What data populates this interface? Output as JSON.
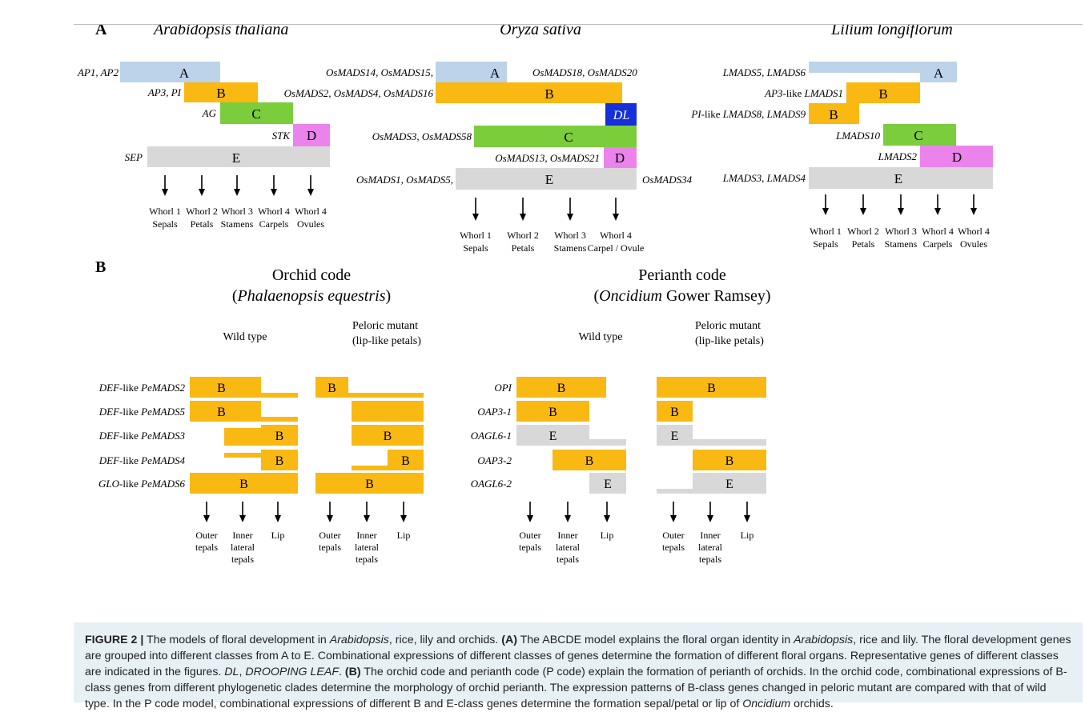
{
  "colors": {
    "A": "#bcd3e9",
    "B": "#f9b812",
    "C": "#7ccd3c",
    "D": "#ec83ec",
    "E": "#d8d8d8",
    "DL": "#1530d8"
  },
  "panelA": {
    "label": "A",
    "species": {
      "arabidopsis": "Arabidopsis thaliana",
      "rice": "Oryza sativa",
      "lily": "Lilium longiflorum"
    },
    "arabidopsis_genes": {
      "A": "AP1, AP2",
      "B": "AP3, PI",
      "C": "AG",
      "D": "STK",
      "E": "SEP"
    },
    "rice_genes": {
      "A_left": "OsMADS14, OsMADS15,",
      "A_right": "OsMADS18, OsMADS20",
      "B": "OsMADS2, OsMADS4, OsMADS16",
      "C": "OsMADS3, OsMADS58",
      "D": "OsMADS13, OsMADS21",
      "E_left": "OsMADS1, OsMADS5,",
      "E_right": "OsMADS34"
    },
    "lily_genes": {
      "A": "LMADS5, LMADS6",
      "B1_prefix": "AP3-like",
      "B1": "LMADS1",
      "B2_prefix": "PI-like",
      "B2": "LMADS8, LMADS9",
      "C": "LMADS10",
      "D": "LMADS2",
      "E": "LMADS3, LMADS4"
    },
    "class_labels": {
      "A": "A",
      "B": "B",
      "C": "C",
      "D": "D",
      "E": "E",
      "DL": "DL"
    },
    "whorls_5": [
      {
        "line1": "Whorl 1",
        "line2": "Sepals"
      },
      {
        "line1": "Whorl 2",
        "line2": "Petals"
      },
      {
        "line1": "Whorl 3",
        "line2": "Stamens"
      },
      {
        "line1": "Whorl 4",
        "line2": "Carpels"
      },
      {
        "line1": "Whorl 4",
        "line2": "Ovules"
      }
    ],
    "whorls_4": [
      {
        "line1": "Whorl 1",
        "line2": "Sepals"
      },
      {
        "line1": "Whorl 2",
        "line2": "Petals"
      },
      {
        "line1": "Whorl 3",
        "line2": "Stamens"
      },
      {
        "line1": "Whorl 4",
        "line2": "Carpel / Ovule"
      }
    ]
  },
  "panelB": {
    "label": "B",
    "orchid_title": "Orchid code",
    "orchid_species": "Phalaenopsis equestris",
    "perianth_title": "Perianth code",
    "perianth_species_italic": "Oncidium",
    "perianth_species_rest": " Gower Ramsey",
    "wild_type": "Wild type",
    "peloric_line1": "Peloric mutant",
    "peloric_line2": "(lip-like petals)",
    "orchid_genes": [
      {
        "prefix": "DEF",
        "suffix": "-like ",
        "gene": "PeMADS2"
      },
      {
        "prefix": "DEF",
        "suffix": "-like ",
        "gene": "PeMADS5"
      },
      {
        "prefix": "DEF",
        "suffix": "-like ",
        "gene": "PeMADS3"
      },
      {
        "prefix": "DEF",
        "suffix": "-like ",
        "gene": "PeMADS4"
      },
      {
        "prefix": "GLO",
        "suffix": "-like ",
        "gene": "PeMADS6"
      }
    ],
    "perianth_genes": [
      "OPI",
      "OAP3-1",
      "OAGL6-1",
      "OAP3-2",
      "OAGL6-2"
    ],
    "organs": [
      {
        "lines": [
          "Outer",
          "tepals"
        ]
      },
      {
        "lines": [
          "Inner",
          "lateral",
          "tepals"
        ]
      },
      {
        "lines": [
          "Lip"
        ]
      }
    ]
  },
  "caption": {
    "fig_label": "FIGURE 2 |",
    "t1": " The models of floral development in ",
    "t2": "Arabidopsis",
    "t3": ", rice, lily and orchids. ",
    "t4": "(A)",
    "t5": " The ABCDE model explains the floral organ identity in ",
    "t6": "Arabidopsis",
    "t7": ", rice and lily. The floral development genes are grouped into different classes from A to E. Combinational expressions of different classes of genes determine the formation of different floral organs. Representative genes of different classes are indicated in the figures. ",
    "t8": "DL",
    "t9": ", ",
    "t10": "DROOPING LEAF",
    "t11": ". ",
    "t12": "(B)",
    "t13": " The orchid code and perianth code (P code) explain the formation of perianth of orchids. In the orchid code, combinational expressions of B-class genes from different phylogenetic clades determine the morphology of orchid perianth. The expression patterns of B-class genes changed in peloric mutant are compared with that of wild type. In the P code model, combinational expressions of different B and E-class genes determine the formation sepal/petal or lip of ",
    "t14": "Oncidium",
    "t15": " orchids."
  }
}
